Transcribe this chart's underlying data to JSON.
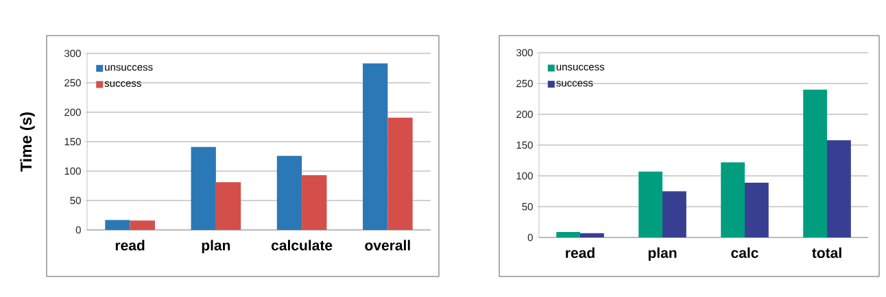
{
  "chart_data": [
    {
      "type": "bar",
      "ylabel": "Time (s)",
      "categories": [
        "read",
        "plan",
        "calculate",
        "overall"
      ],
      "series": [
        {
          "name": "unsuccess",
          "color": "#2a78b6",
          "values": [
            17,
            141,
            126,
            283
          ]
        },
        {
          "name": "success",
          "color": "#d44f4a",
          "values": [
            16,
            81,
            93,
            191
          ]
        }
      ],
      "ylim": [
        0,
        300
      ],
      "yticks": [
        0,
        50,
        100,
        150,
        200,
        250,
        300
      ],
      "grid": "y",
      "legend": "top left"
    },
    {
      "type": "bar",
      "categories": [
        "read",
        "plan",
        "calc",
        "total"
      ],
      "series": [
        {
          "name": "unsuccess",
          "color": "#009e7e",
          "values": [
            9,
            107,
            122,
            240
          ]
        },
        {
          "name": "success",
          "color": "#383f92",
          "values": [
            7,
            75,
            89,
            158
          ]
        }
      ],
      "ylim": [
        0,
        300
      ],
      "yticks": [
        0,
        50,
        100,
        150,
        200,
        250,
        300
      ],
      "grid": "y",
      "legend": "top left"
    }
  ]
}
